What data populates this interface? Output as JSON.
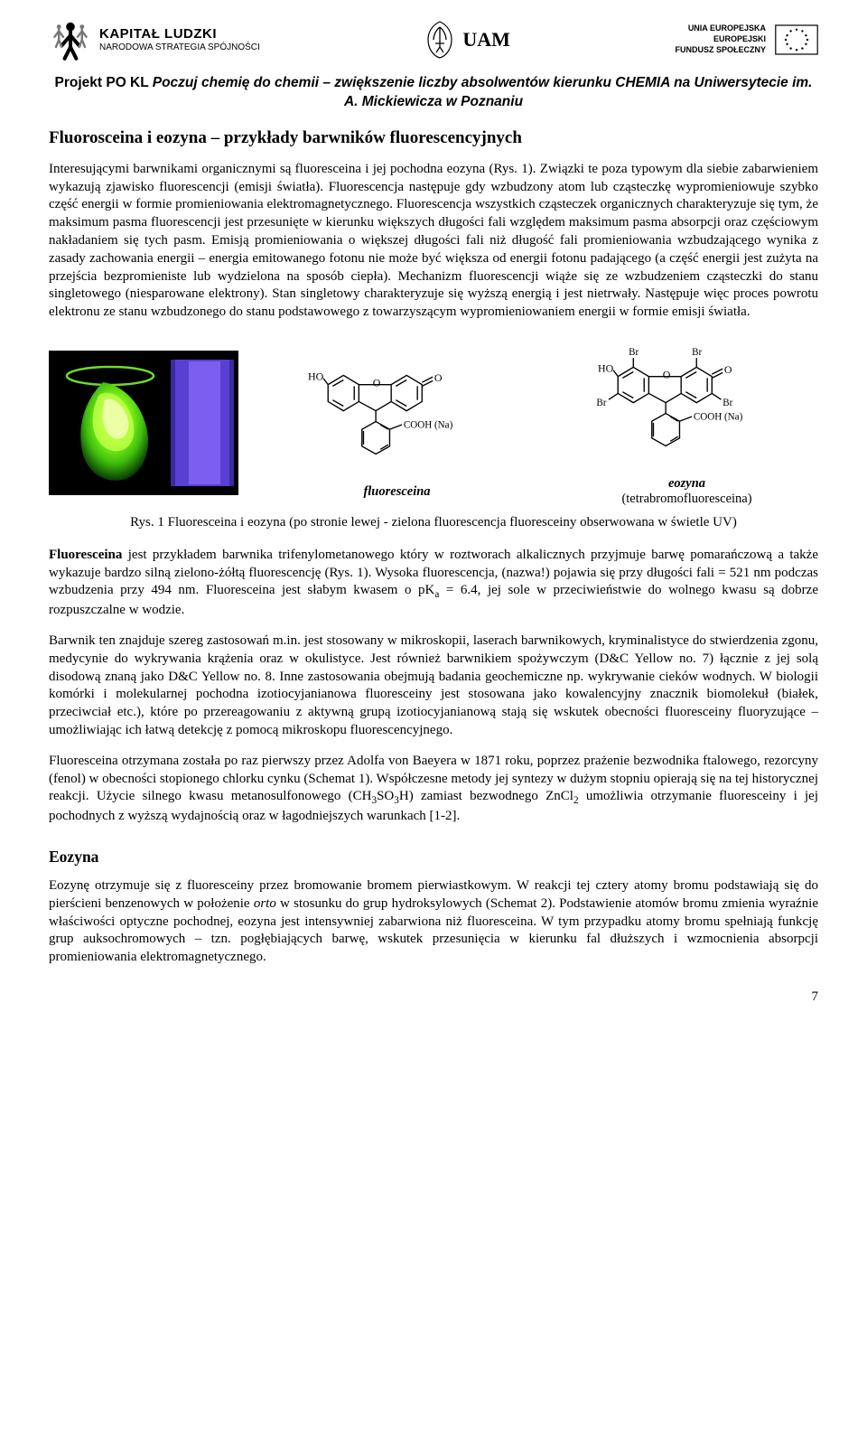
{
  "header": {
    "left_logo": {
      "title_big": "KAPITAŁ LUDZKI",
      "title_small": "NARODOWA STRATEGIA SPÓJNOŚCI"
    },
    "center_logo": {
      "text": "UAM"
    },
    "right_logo": {
      "line1": "UNIA EUROPEJSKA",
      "line2": "EUROPEJSKI",
      "line3": "FUNDUSZ SPOŁECZNY"
    }
  },
  "project_title": {
    "prefix": "Projekt PO KL ",
    "italic": "Poczuj chemię do chemii – zwiększenie liczby absolwentów kierunku CHEMIA na Uniwersytecie im. A. Mickiewicza w Poznaniu"
  },
  "article_title": "Fluorosceina i eozyna – przykłady barwników fluorescencyjnych",
  "intro_paragraph": "Interesującymi barwnikami organicznymi są fluoresceina i jej pochodna eozyna (Rys. 1). Związki te poza typowym dla siebie zabarwieniem wykazują zjawisko fluorescencji (emisji światła). Fluorescencja następuje gdy wzbudzony atom lub cząsteczkę wypromieniowuje szybko część energii w formie promieniowania elektromagnetycznego. Fluorescencja wszystkich cząsteczek organicznych charakteryzuje się tym, że maksimum pasma fluorescencji jest przesunięte w kierunku większych długości fali względem maksimum pasma absorpcji oraz częściowym nakładaniem się tych pasm. Emisją promieniowania o większej długości fali niż długość fali promieniowania wzbudzającego wynika z zasady zachowania energii – energia emitowanego fotonu nie może być większa od energii fotonu padającego (a część energii jest zużyta na przejścia bezpromieniste lub wydzielona na sposób ciepła). Mechanizm fluorescencji wiąże się ze wzbudzeniem cząsteczki do stanu singletowego (niesparowane elektrony). Stan singletowy charakteryzuje się wyższą energią i jest nietrwały. Następuje więc proces powrotu elektronu ze stanu wzbudzonego do stanu podstawowego z towarzyszącym wypromieniowaniem energii w formie emisji światła.",
  "figure": {
    "photo": {
      "bg_color": "#000000",
      "uv_glow_color": "#5a3fd4",
      "fluor_color": "#7fff1a",
      "beaker_rim": "#6edb2e"
    },
    "mol1": {
      "labels": {
        "HO": "HO",
        "O_ring": "O",
        "O_keto": "O",
        "COOH": "COOH (Na)"
      },
      "name_bi": "fluoresceina",
      "sub": ""
    },
    "mol2": {
      "labels": {
        "HO": "HO",
        "O_ring": "O",
        "O_keto": "O",
        "Br": "Br",
        "COOH": "COOH (Na)"
      },
      "name_bi": "eozyna",
      "sub": "(tetrabromofluoresceina)"
    },
    "caption": "Rys. 1 Fluoresceina i eozyna (po stronie lewej - zielona fluorescencja fluoresceiny obserwowana w świetle UV)"
  },
  "para2_html": "<b>Fluoresceina</b> jest przykładem barwnika trifenylometanowego który w roztworach alkalicznych przyjmuje barwę pomarańczową a także wykazuje bardzo silną zielono-żółtą fluorescencję (Rys. 1). Wysoka fluorescencja, (nazwa!) pojawia się przy długości fali = 521 nm podczas wzbudzenia przy 494 nm. Fluoresceina jest słabym kwasem o pK<sub>a</sub> = 6.4, jej sole w przeciwieństwie do wolnego kwasu są dobrze rozpuszczalne w wodzie.",
  "para3": "Barwnik ten znajduje szereg zastosowań m.in. jest stosowany w mikroskopii, laserach barwnikowych, kryminalistyce do stwierdzenia zgonu, medycynie do wykrywania krążenia oraz w okulistyce. Jest również barwnikiem spożywczym (D&C Yellow no. 7) łącznie z jej solą disodową znaną jako D&C Yellow no. 8. Inne zastosowania obejmują badania geochemiczne np. wykrywanie cieków wodnych. W biologii komórki i molekularnej pochodna izotiocyjanianowa fluoresceiny jest stosowana jako kowalencyjny znacznik biomolekuł (białek, przeciwciał etc.), które po przereagowaniu z aktywną grupą izotiocyjanianową stają się wskutek obecności fluoresceiny fluoryzujące – umożliwiając ich łatwą detekcję z pomocą mikroskopu fluorescencyjnego.",
  "para4_html": "Fluoresceina otrzymana została po raz pierwszy przez Adolfa von Baeyera w 1871 roku, poprzez prażenie bezwodnika ftalowego, rezorcyny (fenol) w obecności stopionego chlorku cynku (Schemat 1). Współczesne metody jej syntezy w dużym stopniu opierają się na tej historycznej reakcji. Użycie silnego kwasu metanosulfonowego (CH<sub>3</sub>SO<sub>3</sub>H) zamiast bezwodnego ZnCl<sub>2</sub> umożliwia otrzymanie fluoresceiny i jej pochodnych z wyższą wydajnością oraz w łagodniejszych warunkach [1-2].",
  "section2_title": "Eozyna",
  "para5_html": "Eozynę otrzymuje się z fluoresceiny przez bromowanie bromem pierwiastkowym. W reakcji tej cztery atomy bromu podstawiają się do pierścieni benzenowych w położenie <i>orto</i> w stosunku do grup hydroksylowych (Schemat 2). Podstawienie atomów bromu zmienia wyraźnie właściwości optyczne pochodnej, eozyna jest intensywniej zabarwiona niż fluoresceina. W tym przypadku atomy bromu spełniają funkcję grup auksochromowych – tzn. pogłębiających barwę, wskutek przesunięcia w kierunku fal dłuższych i wzmocnienia absorpcji promieniowania elektromagnetycznego.",
  "page_number": "7",
  "colors": {
    "text": "#000000",
    "background": "#ffffff"
  }
}
